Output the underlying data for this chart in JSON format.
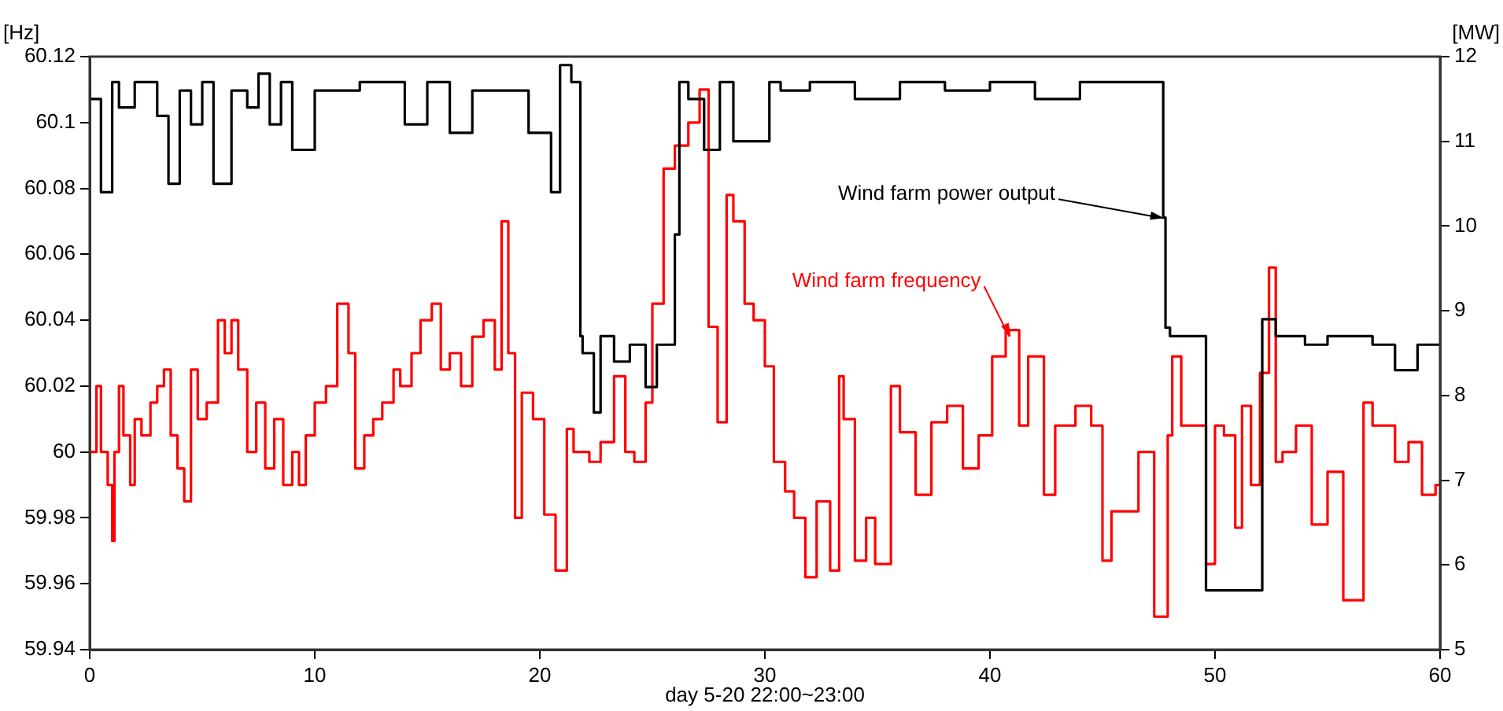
{
  "chart_data": {
    "type": "step",
    "xlabel": "day 5-20 22:00~23:00",
    "ylabel": "[Hz]",
    "y2label": "[MW]",
    "xlim": [
      0,
      60
    ],
    "xticks": [
      0,
      10,
      20,
      30,
      40,
      50,
      60
    ],
    "ylim": [
      59.94,
      60.12
    ],
    "yticks": [
      59.94,
      59.96,
      59.98,
      60,
      60.02,
      60.04,
      60.06,
      60.08,
      60.1,
      60.12
    ],
    "y2lim": [
      5,
      12
    ],
    "y2ticks": [
      5,
      6,
      7,
      8,
      9,
      10,
      11,
      12
    ],
    "grid": false,
    "legend": false,
    "annotations": [
      {
        "text": "Wind farm power output",
        "x": 47.8,
        "y": 60.071
      },
      {
        "text": "Wind farm frequency",
        "x": 41.0,
        "y": 60.035
      }
    ],
    "series": [
      {
        "color": "#000000",
        "axis": "y2",
        "x": [
          0,
          0.5,
          1.0,
          1.3,
          2,
          3,
          3.5,
          4.0,
          4.5,
          5,
          5.5,
          6.3,
          7,
          7.5,
          8,
          8.5,
          9,
          10,
          10.5,
          12,
          13,
          14,
          15,
          16,
          17,
          18,
          19,
          19.5,
          20.5,
          20.9,
          21.4,
          21.8,
          21.9,
          22.4,
          22.7,
          23.3,
          24.0,
          24.7,
          25.2,
          26.0,
          26.2,
          26.6,
          27.3,
          28.0,
          28.6,
          30.2,
          30.7,
          32,
          34,
          36,
          38,
          40,
          42,
          44,
          46,
          47.7,
          47.8,
          48.0,
          49.6,
          49.9,
          52.1,
          52.7,
          54,
          55,
          56,
          57,
          58,
          59,
          60
        ],
        "values": [
          11.7,
          11.5,
          10.4,
          11.7,
          11.4,
          11.7,
          11.3,
          10.5,
          11.6,
          11.2,
          11.7,
          10.5,
          11.6,
          11.4,
          11.8,
          11.2,
          11.7,
          10.9,
          11.6,
          11.6,
          11.7,
          11.7,
          11.2,
          11.7,
          11.1,
          11.6,
          11.6,
          11.6,
          11.1,
          10.4,
          11.9,
          11.7,
          8.7,
          8.5,
          7.8,
          8.7,
          8.4,
          8.6,
          8.1,
          8.6,
          9.9,
          11.7,
          11.5,
          10.9,
          11.7,
          11.0,
          11.7,
          11.6,
          11.7,
          11.5,
          11.7,
          11.6,
          11.7,
          11.5,
          11.7,
          11.7,
          10.1,
          8.8,
          8.7,
          5.7,
          5.7,
          8.9,
          8.7,
          8.6,
          8.7,
          8.7,
          8.6,
          8.3,
          8.6
        ]
      },
      {
        "color": "#ff0000",
        "x": [
          0,
          0.3,
          0.5,
          0.8,
          1.0,
          1.1,
          1.3,
          1.5,
          1.8,
          2.0,
          2.3,
          2.7,
          3.0,
          3.3,
          3.6,
          3.9,
          4.2,
          4.5,
          4.8,
          5.2,
          5.7,
          6.0,
          6.3,
          6.6,
          7.0,
          7.4,
          7.8,
          8.2,
          8.6,
          9.0,
          9.3,
          9.6,
          10.0,
          10.5,
          11.0,
          11.5,
          11.8,
          12.2,
          12.6,
          13.0,
          13.5,
          13.8,
          14.3,
          14.7,
          15.2,
          15.6,
          16.0,
          16.5,
          17.0,
          17.5,
          18.0,
          18.3,
          18.6,
          18.9,
          19.2,
          19.7,
          20.2,
          20.7,
          21.2,
          21.5,
          22.2,
          22.7,
          23.3,
          23.8,
          24.2,
          24.7,
          25.0,
          25.5,
          26.0,
          26.6,
          27.1,
          27.5,
          27.9,
          28.3,
          28.6,
          29.1,
          29.5,
          30.0,
          30.4,
          30.9,
          31.3,
          31.8,
          32.3,
          32.9,
          33.3,
          33.5,
          34.0,
          34.5,
          34.9,
          35.6,
          36.0,
          36.7,
          37.4,
          38.1,
          38.8,
          39.5,
          40.1,
          40.7,
          41.3,
          41.7,
          42.4,
          42.9,
          43.8,
          44.5,
          45.0,
          45.4,
          45.8,
          46.6,
          47.3,
          47.9,
          48.1,
          48.5,
          48.9,
          49.6,
          50.0,
          50.4,
          50.9,
          51.2,
          51.6,
          52.0,
          52.4,
          52.7,
          53.0,
          53.6,
          54.3,
          55.0,
          55.7,
          56.6,
          57.0,
          58.0,
          58.6,
          59.2,
          59.8,
          60
        ],
        "values": [
          60.01,
          60.0,
          60.02,
          60.0,
          59.99,
          59.973,
          60.0,
          60.02,
          60.005,
          59.99,
          60.01,
          60.005,
          60.015,
          60.02,
          60.025,
          60.005,
          59.995,
          59.985,
          60.025,
          60.01,
          60.015,
          60.04,
          60.03,
          60.04,
          60.025,
          60.0,
          60.015,
          59.995,
          60.01,
          59.99,
          60.0,
          59.99,
          60.005,
          60.015,
          60.02,
          60.045,
          60.03,
          59.995,
          60.005,
          60.01,
          60.015,
          60.025,
          60.02,
          60.03,
          60.04,
          60.045,
          60.025,
          60.03,
          60.02,
          60.035,
          60.04,
          60.025,
          60.07,
          60.03,
          59.98,
          60.018,
          60.01,
          59.981,
          59.964,
          60.007,
          60.0,
          59.997,
          60.003,
          60.023,
          60.0,
          59.997,
          60.015,
          60.045,
          60.086,
          60.093,
          60.1,
          60.11,
          60.038,
          60.009,
          60.078,
          60.07,
          60.045,
          60.04,
          60.026,
          59.997,
          59.988,
          59.98,
          59.962,
          59.985,
          59.964,
          60.023,
          60.01,
          59.967,
          59.98,
          59.966,
          60.02,
          60.006,
          59.987,
          60.009,
          60.014,
          59.995,
          60.005,
          60.029,
          60.037,
          60.008,
          60.029,
          59.987,
          60.008,
          60.014,
          60.008,
          59.967,
          59.982,
          59.982,
          60.0,
          59.95,
          60.005,
          60.029,
          60.008,
          60.008,
          59.966,
          60.008,
          60.005,
          59.977,
          60.014,
          59.99,
          60.024,
          60.056,
          59.997,
          60.0,
          60.008,
          59.978,
          59.994,
          59.955,
          60.015,
          60.008,
          59.997,
          60.003,
          59.987,
          59.99
        ]
      }
    ]
  }
}
